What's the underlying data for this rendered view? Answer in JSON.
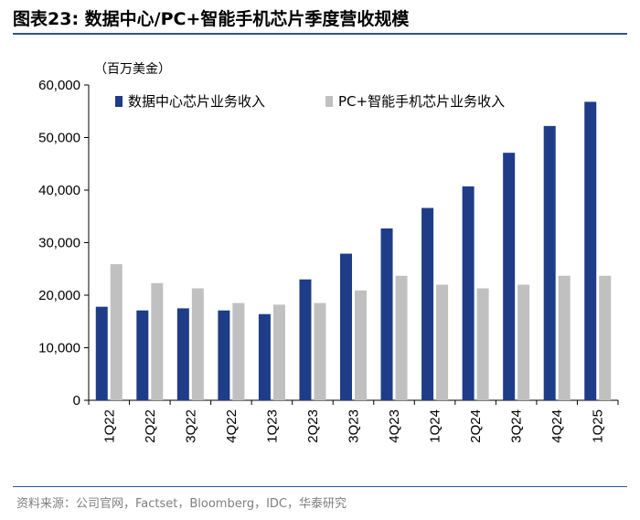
{
  "figure": {
    "title": "图表23:  数据中心/PC+智能手机芯片季度营收规模",
    "unit_label": "（百万美金）",
    "source": "资料来源：公司官网，Factset，Bloomberg，IDC，华泰研究"
  },
  "colors": {
    "primary": "#1f3c88",
    "secondary": "#c0c0c0",
    "rule": "#2f5597",
    "source_text": "#7f7f7f"
  },
  "chart_data": {
    "type": "bar",
    "title": "数据中心/PC+智能手机芯片季度营收规模",
    "ylabel": "（百万美金）",
    "xlabel": "",
    "ylim": [
      0,
      60000
    ],
    "yticks": [
      0,
      10000,
      20000,
      30000,
      40000,
      50000,
      60000
    ],
    "ytick_labels": [
      "0",
      "10,000",
      "20,000",
      "30,000",
      "40,000",
      "50,000",
      "60,000"
    ],
    "categories": [
      "1Q22",
      "2Q22",
      "3Q22",
      "4Q22",
      "1Q23",
      "2Q23",
      "3Q23",
      "4Q23",
      "1Q24",
      "2Q24",
      "3Q24",
      "4Q24",
      "1Q25"
    ],
    "series": [
      {
        "name": "数据中心芯片业务收入",
        "color": "#1f3c88",
        "values": [
          17800,
          17100,
          17500,
          17100,
          16400,
          23000,
          27900,
          32700,
          36600,
          40700,
          47100,
          52200,
          56800
        ]
      },
      {
        "name": "PC+智能手机芯片业务收入",
        "color": "#c0c0c0",
        "values": [
          25900,
          22300,
          21300,
          18500,
          18200,
          18500,
          20900,
          23700,
          22000,
          21300,
          22000,
          23700,
          23700
        ]
      }
    ],
    "legend_position": "top",
    "grid": false
  }
}
